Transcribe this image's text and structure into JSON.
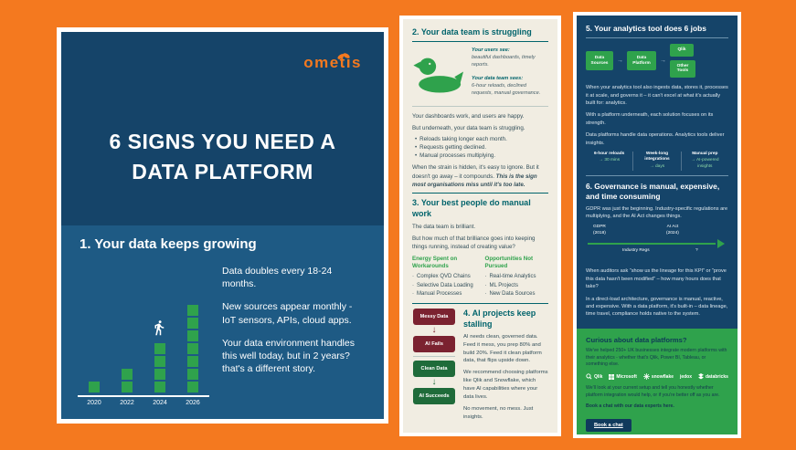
{
  "colors": {
    "orange": "#F4791F",
    "navy": "#154469",
    "navy_light": "#1E5A84",
    "cream": "#F1EDE2",
    "teal": "#02646C",
    "green": "#2FA24C",
    "dark_green": "#1F6B3A",
    "maroon": "#7B2230"
  },
  "left": {
    "logo": "ometis",
    "title1": "6 SIGNS YOU NEED A",
    "title2": "DATA PLATFORM",
    "section1": {
      "heading": "1. Your data keeps growing",
      "chart": {
        "type": "bar",
        "years": [
          "2020",
          "2022",
          "2024",
          "2026"
        ],
        "blocks": [
          1,
          2,
          4,
          7
        ]
      },
      "p1": "Data doubles every 18-24 months.",
      "p2": "New sources appear monthly - IoT sensors, APIs, cloud apps.",
      "p3": "Your data environment handles this well today, but in 2 years? that's a different story."
    }
  },
  "mid": {
    "section2": {
      "heading": "2. Your data team is struggling",
      "users_label": "Your users see:",
      "users_text": "beautiful dashboards, timely reports.",
      "team_label": "Your data team sees:",
      "team_text": "6-hour reloads, declined requests, manual governance.",
      "p1": "Your dashboards work, and users are happy.",
      "p2": "But underneath, your data team is struggling.",
      "bullets": [
        "Reloads taking longer each month.",
        "Requests getting declined.",
        "Manual processes multiplying."
      ],
      "p3a": "When the strain is hidden, it's easy to ignore. But it doesn't go away – it compounds.",
      "p3b": "This is the sign most organisations miss until it's too late."
    },
    "section3": {
      "heading": "3. Your best people do manual work",
      "p1": "The data team is brilliant.",
      "p2": "But how much of that brilliance goes into keeping things running, instead of creating value?",
      "col1_title": "Energy Spent on Workarounds",
      "col1_items": [
        "Complex QVD Chains",
        "Selective Data Loading",
        "Manual Processes"
      ],
      "col2_title": "Opportunities Not Pursued",
      "col2_items": [
        "Real-time Analytics",
        "ML Projects",
        "New Data Sources"
      ]
    },
    "section4": {
      "heading": "4. AI projects keep stalling",
      "f1": "Messy Data",
      "f2": "AI Fails",
      "s1": "Clean Data",
      "s2": "AI Succeeds",
      "p1": "AI needs clean, governed data. Feed it mess, you prep 80% and build 20%. Feed it clean platform data, that flips upside down.",
      "p2": "We recommend choosing platforms like Qlik and Snowflake, which have AI capabilities where your data lives.",
      "p3": "No movement, no mess. Just insights."
    }
  },
  "right": {
    "section5": {
      "heading": "5. Your analytics tool does 6 jobs",
      "flow": {
        "sources": "Data Sources",
        "platform": "Data Platform",
        "qlik": "Qlik",
        "other": "Other Tools"
      },
      "p1": "When your analytics tool also ingests data, stores it, processes it at scale, and governs it – it can't excel at what it's actually built for: analytics.",
      "p2": "With a platform underneath, each solution focuses on its strength.",
      "p3": "Data platforms handle data operations. Analytics tools deliver insights.",
      "stats": [
        {
          "from": "6-hour reloads",
          "to": "→ 30 mins"
        },
        {
          "from": "Week-long integrations",
          "to": "→ days"
        },
        {
          "from": "Manual prep",
          "to": "→ AI-powered insights"
        }
      ]
    },
    "section6": {
      "heading": "6. Governance is manual, expensive, and time consuming",
      "p1": "GDPR was just the beginning. Industry-specific regulations are multiplying, and the AI Act changes things.",
      "tl": {
        "gdpr": "GDPR",
        "gdpr_year": "(2018)",
        "aiact": "AI Act",
        "aiact_year": "(2024)",
        "industry": "Industry Regs",
        "future": "?"
      },
      "p2": "When auditors ask “show us the lineage for this KPI” or “prove this data hasn't been modified” – how many hours does that take?",
      "p3": "In a direct-load architecture, governance is manual, reactive, and expensive. With a data platform, it's built-in – data lineage, time travel, compliance holds native to the system."
    },
    "cta": {
      "heading": "Curious about data platforms?",
      "p1": "We've helped 250+ UK businesses integrate modern platforms with their analytics - whether that's Qlik, Power BI, Tableau, or something else.",
      "logos": [
        "Qlik",
        "Microsoft",
        "snowflake",
        "jedox",
        "databricks"
      ],
      "p2": "We'll look at your current setup and tell you honestly whether platform integration would help, or if you're better off as you are.",
      "p3": "Book a chat with our data experts here.",
      "button": "Book a chat"
    }
  }
}
